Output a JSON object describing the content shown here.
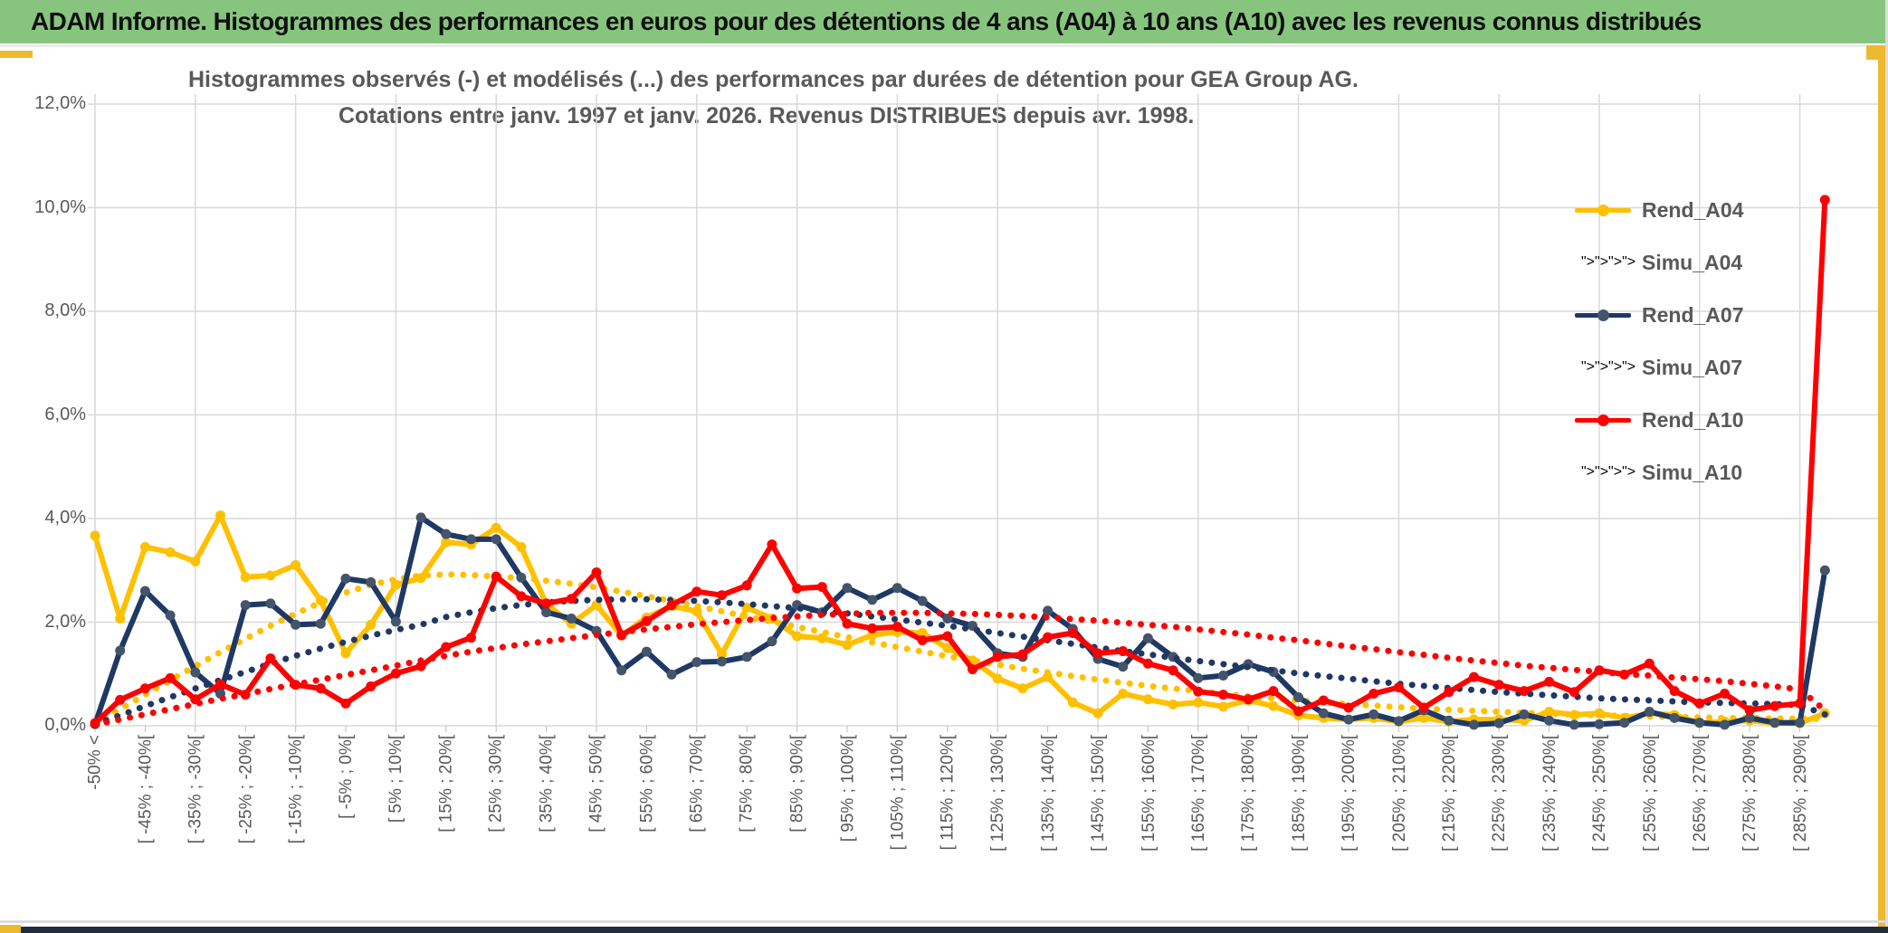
{
  "window": {
    "title": "ADAM Informe. Histogrammes des performances en euros pour des détentions de 4 ans (A04) à 10 ans (A10) avec les revenus connus distribués"
  },
  "colors": {
    "banner_green": "#87C57F",
    "frame_gold": "#EDB92E",
    "frame_navy": "#202B3C",
    "gridline": "#D9D9D9",
    "text_grey": "#595959",
    "series_gold": "#FFC000",
    "series_navy": "#1F3864",
    "series_navy_marker": "#44546A",
    "series_red": "#FF0000"
  },
  "chart_data": {
    "type": "line",
    "title_line1": "Histogrammes observés (-) et modélisés (...) des performances par durées de détention pour GEA Group AG.",
    "title_line2": "Cotations entre janv. 1997 et janv. 2026. Revenus DISTRIBUES depuis avr. 1998.",
    "ylabel": "",
    "xlabel": "",
    "ylim": [
      0,
      12
    ],
    "y_tick_step": 2,
    "y_tick_labels": [
      "12,0%",
      "10,0%",
      "8,0%",
      "6,0%",
      "4,0%",
      "2,0%",
      "0,0%"
    ],
    "grid": true,
    "legend_position": "right-top",
    "bin_count": 70,
    "x_labels_every_other_bin": true,
    "x_labels": [
      "-50% <",
      "[ -45% ; -40%[",
      "[ -35% ; -30%[",
      "[ -25% ; -20%[",
      "[ -15% ; -10%[",
      "[ -5% ; 0%[",
      "[ 5% ; 10%[",
      "[ 15% ; 20%[",
      "[ 25% ; 30%[",
      "[ 35% ; 40%[",
      "[ 45% ; 50%[",
      "[ 55% ; 60%[",
      "[ 65% ; 70%[",
      "[ 75% ; 80%[",
      "[ 85% ; 90%[",
      "[ 95% ; 100%[",
      "[ 105% ; 110%[",
      "[ 115% ; 120%[",
      "[ 125% ; 130%[",
      "[ 135% ; 140%[",
      "[ 145% ; 150%[",
      "[ 155% ; 160%[",
      "[ 165% ; 170%[",
      "[ 175% ; 180%[",
      "[ 185% ; 190%[",
      "[ 195% ; 200%[",
      "[ 205% ; 210%[",
      "[ 215% ; 220%[",
      "[ 225% ; 230%[",
      "[ 235% ; 240%[",
      "[ 245% ; 250%[",
      "[ 255% ; 260%[",
      "[ 265% ; 270%[",
      "[ 275% ; 280%[",
      "[ 285% ; 290%["
    ],
    "series": [
      {
        "name": "Rend_A04",
        "style": "solid",
        "color": "#FFC000",
        "marker": "#FFC000",
        "values": [
          3.67,
          2.07,
          3.45,
          3.35,
          3.17,
          4.06,
          2.87,
          2.9,
          3.1,
          2.42,
          1.4,
          1.95,
          2.72,
          2.85,
          3.54,
          3.5,
          3.82,
          3.45,
          2.35,
          1.97,
          2.33,
          1.74,
          2.09,
          2.31,
          2.21,
          1.38,
          2.28,
          2.07,
          1.73,
          1.69,
          1.56,
          1.75,
          1.81,
          1.79,
          1.5,
          1.26,
          0.91,
          0.72,
          0.94,
          0.45,
          0.24,
          0.62,
          0.51,
          0.41,
          0.45,
          0.37,
          0.49,
          0.38,
          0.2,
          0.15,
          0.12,
          0.15,
          0.08,
          0.15,
          0.08,
          0.12,
          0.12,
          0.1,
          0.27,
          0.21,
          0.24,
          0.15,
          0.24,
          0.21,
          0.05,
          0.08,
          0.1,
          0.05,
          0.05,
          0.24
        ]
      },
      {
        "name": "Simu_A04",
        "style": "dotted",
        "color": "#FFC000",
        "marker": "#FFC000",
        "values": [
          0.03,
          0.32,
          0.6,
          0.88,
          1.15,
          1.42,
          1.68,
          1.93,
          2.16,
          2.38,
          2.57,
          2.72,
          2.83,
          2.9,
          2.92,
          2.91,
          2.88,
          2.85,
          2.8,
          2.74,
          2.67,
          2.59,
          2.5,
          2.41,
          2.31,
          2.21,
          2.11,
          2.01,
          1.91,
          1.81,
          1.71,
          1.61,
          1.52,
          1.43,
          1.34,
          1.26,
          1.18,
          1.1,
          1.03,
          0.96,
          0.89,
          0.83,
          0.77,
          0.72,
          0.67,
          0.62,
          0.57,
          0.53,
          0.49,
          0.45,
          0.42,
          0.39,
          0.36,
          0.33,
          0.31,
          0.29,
          0.27,
          0.25,
          0.23,
          0.22,
          0.2,
          0.19,
          0.18,
          0.17,
          0.16,
          0.15,
          0.15,
          0.14,
          0.14,
          0.13
        ]
      },
      {
        "name": "Rend_A07",
        "style": "solid",
        "color": "#1F3864",
        "marker": "#44546A",
        "values": [
          0.03,
          1.45,
          2.6,
          2.13,
          1.03,
          0.62,
          2.33,
          2.36,
          1.95,
          1.97,
          2.84,
          2.77,
          2.01,
          4.02,
          3.7,
          3.6,
          3.6,
          2.86,
          2.19,
          2.07,
          1.83,
          1.07,
          1.43,
          0.99,
          1.23,
          1.24,
          1.33,
          1.63,
          2.33,
          2.19,
          2.66,
          2.43,
          2.66,
          2.41,
          2.07,
          1.93,
          1.4,
          1.33,
          2.22,
          1.87,
          1.29,
          1.14,
          1.69,
          1.33,
          0.92,
          0.97,
          1.19,
          1.04,
          0.55,
          0.24,
          0.12,
          0.22,
          0.09,
          0.3,
          0.1,
          0.02,
          0.05,
          0.22,
          0.1,
          0.02,
          0.03,
          0.06,
          0.27,
          0.15,
          0.06,
          0.02,
          0.15,
          0.06,
          0.06,
          3.0
        ]
      },
      {
        "name": "Simu_A07",
        "style": "dotted",
        "color": "#1F3864",
        "marker": "#1F3864",
        "values": [
          0.03,
          0.2,
          0.38,
          0.55,
          0.72,
          0.88,
          1.04,
          1.2,
          1.35,
          1.49,
          1.62,
          1.74,
          1.85,
          1.95,
          2.1,
          2.19,
          2.27,
          2.33,
          2.38,
          2.41,
          2.43,
          2.44,
          2.44,
          2.43,
          2.41,
          2.38,
          2.35,
          2.31,
          2.27,
          2.22,
          2.17,
          2.11,
          2.05,
          1.99,
          1.93,
          1.86,
          1.79,
          1.72,
          1.65,
          1.58,
          1.51,
          1.44,
          1.38,
          1.31,
          1.25,
          1.19,
          1.13,
          1.07,
          1.01,
          0.96,
          0.91,
          0.86,
          0.81,
          0.77,
          0.73,
          0.69,
          0.65,
          0.62,
          0.59,
          0.56,
          0.53,
          0.51,
          0.49,
          0.47,
          0.45,
          0.44,
          0.43,
          0.42,
          0.4,
          0.22
        ]
      },
      {
        "name": "Rend_A10",
        "style": "solid",
        "color": "#FF0000",
        "marker": "#FF0000",
        "values": [
          0.05,
          0.5,
          0.72,
          0.92,
          0.51,
          0.8,
          0.6,
          1.3,
          0.79,
          0.72,
          0.43,
          0.76,
          1.01,
          1.15,
          1.52,
          1.7,
          2.88,
          2.5,
          2.36,
          2.45,
          2.96,
          1.75,
          2.02,
          2.33,
          2.59,
          2.52,
          2.71,
          3.5,
          2.65,
          2.68,
          1.97,
          1.88,
          1.91,
          1.65,
          1.73,
          1.09,
          1.33,
          1.38,
          1.71,
          1.79,
          1.4,
          1.44,
          1.2,
          1.07,
          0.66,
          0.6,
          0.51,
          0.67,
          0.28,
          0.49,
          0.35,
          0.62,
          0.74,
          0.35,
          0.65,
          0.94,
          0.79,
          0.67,
          0.85,
          0.65,
          1.07,
          0.99,
          1.2,
          0.67,
          0.43,
          0.62,
          0.3,
          0.38,
          0.43,
          10.15
        ]
      },
      {
        "name": "Simu_A10",
        "style": "dotted",
        "color": "#FF0000",
        "marker": "#FF0000",
        "values": [
          0.02,
          0.12,
          0.22,
          0.32,
          0.42,
          0.52,
          0.61,
          0.71,
          0.8,
          0.89,
          0.98,
          1.07,
          1.16,
          1.26,
          1.35,
          1.43,
          1.5,
          1.57,
          1.63,
          1.69,
          1.75,
          1.81,
          1.86,
          1.91,
          1.96,
          2.0,
          2.04,
          2.08,
          2.11,
          2.14,
          2.16,
          2.18,
          2.18,
          2.18,
          2.17,
          2.16,
          2.14,
          2.12,
          2.09,
          2.06,
          2.03,
          1.99,
          1.95,
          1.91,
          1.86,
          1.81,
          1.76,
          1.7,
          1.65,
          1.59,
          1.53,
          1.48,
          1.42,
          1.37,
          1.31,
          1.26,
          1.21,
          1.16,
          1.12,
          1.08,
          1.04,
          1.0,
          0.97,
          0.93,
          0.9,
          0.86,
          0.81,
          0.76,
          0.7,
          0.3
        ]
      }
    ]
  }
}
